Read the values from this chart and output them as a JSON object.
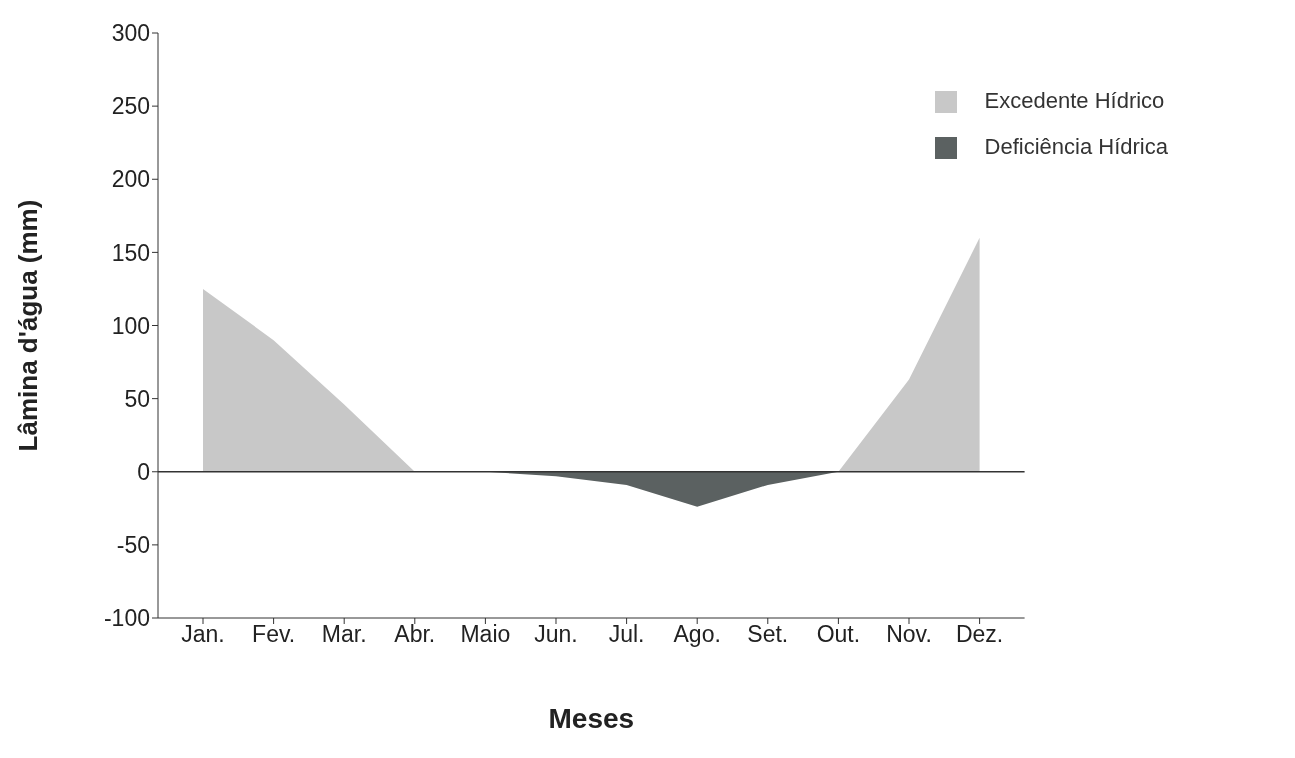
{
  "chart_data": {
    "type": "area",
    "xlabel": "Meses",
    "ylabel": "Lâmina d'água (mm)",
    "categories": [
      "Jan.",
      "Fev.",
      "Mar.",
      "Abr.",
      "Maio",
      "Jun.",
      "Jul.",
      "Ago.",
      "Set.",
      "Out.",
      "Nov.",
      "Dez."
    ],
    "series": [
      {
        "name": "Excedente Hídrico",
        "color": "#c8c8c8",
        "values": [
          125,
          90,
          46,
          0,
          0,
          0,
          0,
          0,
          0,
          0,
          63,
          160
        ]
      },
      {
        "name": "Deficiência Hídrica",
        "color": "#5b6161",
        "values": [
          0,
          0,
          0,
          0,
          0,
          -3,
          -9,
          -24,
          -9,
          0,
          0,
          0
        ]
      }
    ],
    "ylim": [
      -100,
      300
    ],
    "yticks": [
      -100,
      -50,
      0,
      50,
      100,
      150,
      200,
      250,
      300
    ],
    "ref_lines": [
      {
        "axis": "y",
        "value": 0,
        "color": "#333333"
      }
    ],
    "grid": false,
    "legend": "top right"
  }
}
